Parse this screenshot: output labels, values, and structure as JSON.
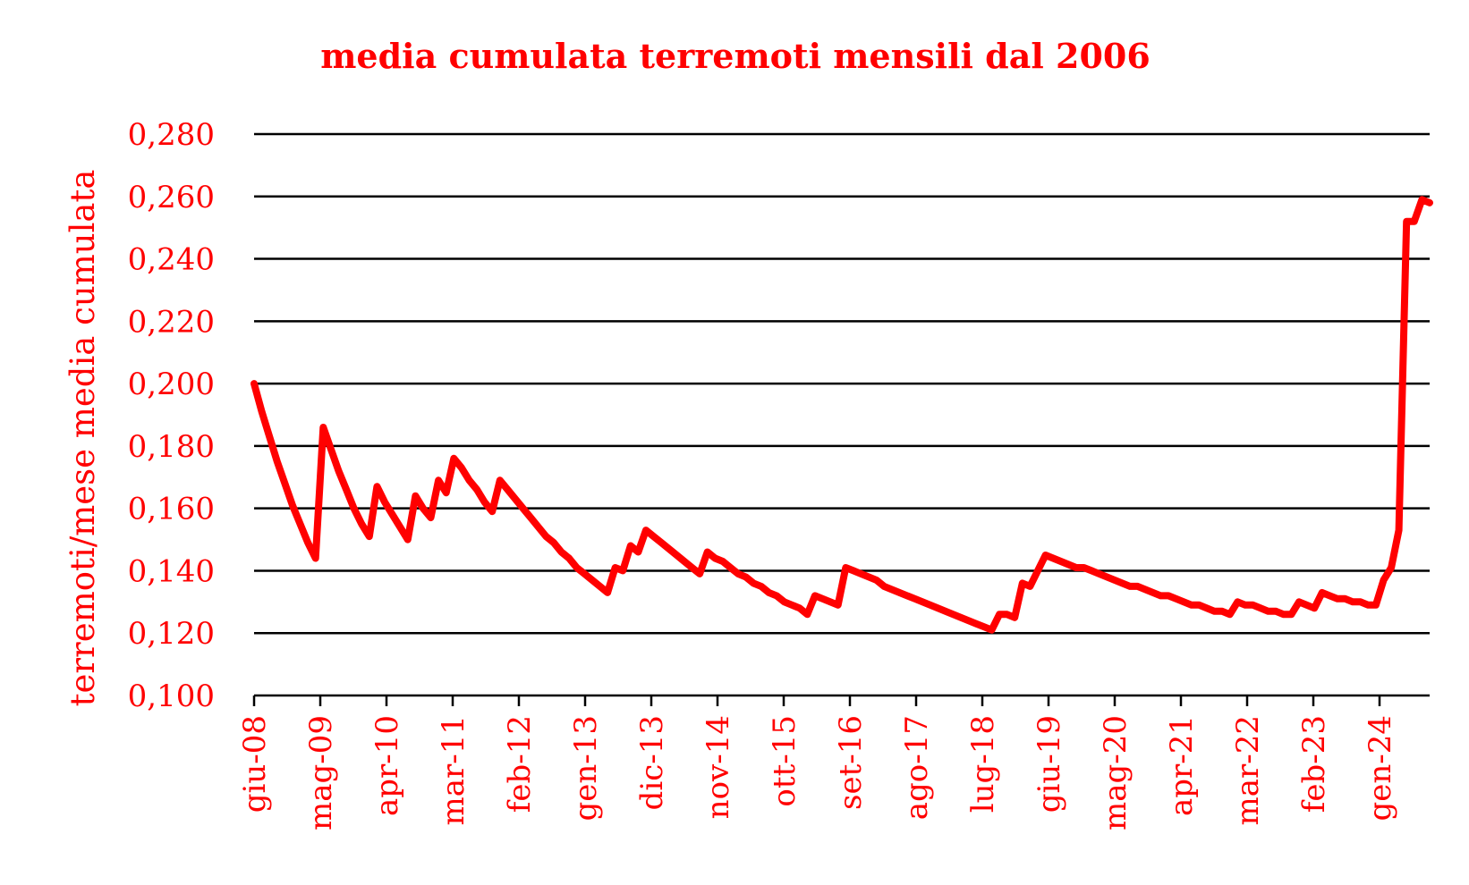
{
  "colors": {
    "accent": "#ff0000",
    "grid": "#000000",
    "background": "#ffffff"
  },
  "chart_data": {
    "type": "line",
    "title": "media cumulata terremoti mensili dal 2006",
    "xlabel": "",
    "ylabel": "terremoti/mese media cumulata",
    "ylim": [
      0.1,
      0.28
    ],
    "yticks": [
      "0,100",
      "0,120",
      "0,140",
      "0,160",
      "0,180",
      "0,200",
      "0,220",
      "0,240",
      "0,260",
      "0,280"
    ],
    "xticks": [
      "giu-08",
      "mag-09",
      "apr-10",
      "mar-11",
      "feb-12",
      "gen-13",
      "dic-13",
      "nov-14",
      "ott-15",
      "set-16",
      "ago-17",
      "lug-18",
      "giu-19",
      "mag-20",
      "apr-21",
      "mar-22",
      "feb-23",
      "gen-24"
    ],
    "grid": true,
    "legend": "none",
    "series": [
      {
        "values": [
          0.2,
          0.191,
          0.183,
          0.175,
          0.168,
          0.161,
          0.155,
          0.149,
          0.144,
          0.186,
          0.179,
          0.172,
          0.166,
          0.16,
          0.155,
          0.151,
          0.167,
          0.162,
          0.158,
          0.154,
          0.15,
          0.164,
          0.16,
          0.157,
          0.169,
          0.165,
          0.176,
          0.173,
          0.169,
          0.166,
          0.162,
          0.159,
          0.169,
          0.166,
          0.163,
          0.16,
          0.157,
          0.154,
          0.151,
          0.149,
          0.146,
          0.144,
          0.141,
          0.139,
          0.137,
          0.135,
          0.133,
          0.141,
          0.14,
          0.148,
          0.146,
          0.153,
          0.151,
          0.149,
          0.147,
          0.145,
          0.143,
          0.141,
          0.139,
          0.146,
          0.144,
          0.143,
          0.141,
          0.139,
          0.138,
          0.136,
          0.135,
          0.133,
          0.132,
          0.13,
          0.129,
          0.128,
          0.126,
          0.132,
          0.131,
          0.13,
          0.129,
          0.141,
          0.14,
          0.139,
          0.138,
          0.137,
          0.135,
          0.134,
          0.133,
          0.132,
          0.131,
          0.13,
          0.129,
          0.128,
          0.127,
          0.126,
          0.125,
          0.124,
          0.123,
          0.122,
          0.121,
          0.126,
          0.126,
          0.125,
          0.136,
          0.135,
          0.14,
          0.145,
          0.144,
          0.143,
          0.142,
          0.141,
          0.141,
          0.14,
          0.139,
          0.138,
          0.137,
          0.136,
          0.135,
          0.135,
          0.134,
          0.133,
          0.132,
          0.132,
          0.131,
          0.13,
          0.129,
          0.129,
          0.128,
          0.127,
          0.127,
          0.126,
          0.13,
          0.129,
          0.129,
          0.128,
          0.127,
          0.127,
          0.126,
          0.126,
          0.13,
          0.129,
          0.128,
          0.133,
          0.132,
          0.131,
          0.131,
          0.13,
          0.13,
          0.129,
          0.129,
          0.137,
          0.141,
          0.153,
          0.252,
          0.252,
          0.259,
          0.258
        ]
      }
    ]
  }
}
